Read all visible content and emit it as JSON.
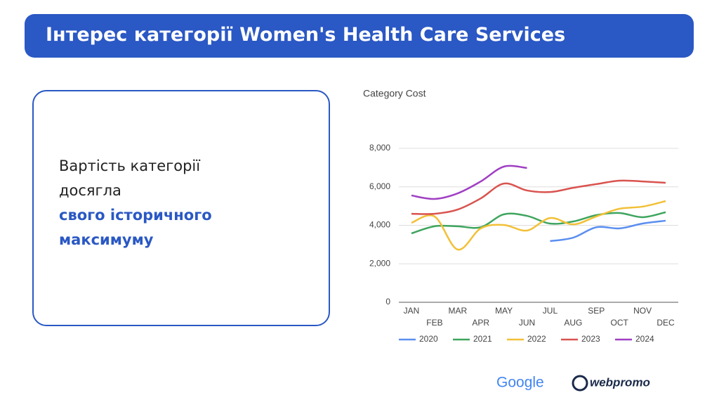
{
  "header": {
    "title": "Інтерес категорії Women's Health Care Services"
  },
  "card": {
    "lines": [
      "Вартість категорії",
      "досягла",
      "свого історичного",
      "максимуму"
    ]
  },
  "logos": {
    "google": "Google",
    "webpromo": "webpromo"
  },
  "chart_data": {
    "type": "line",
    "title": "Category Cost",
    "categories": [
      "JAN",
      "FEB",
      "MAR",
      "APR",
      "MAY",
      "JUN",
      "JUL",
      "AUG",
      "SEP",
      "OCT",
      "NOV",
      "DEC"
    ],
    "ylim": [
      0,
      8000
    ],
    "yticks": [
      0,
      {
        "value": 2000,
        "label": "2,000"
      },
      {
        "value": 4000,
        "label": "4,000"
      },
      {
        "value": 6000,
        "label": "6,000"
      },
      {
        "value": 8000,
        "label": "8,000"
      }
    ],
    "grid": true,
    "legend": "bottom",
    "series": [
      {
        "name": "2020",
        "color": "#5b8ff0",
        "values": [
          null,
          null,
          null,
          null,
          null,
          null,
          3180,
          3360,
          3900,
          3840,
          4090,
          4240
        ]
      },
      {
        "name": "2021",
        "color": "#3ea55e",
        "values": [
          3580,
          3950,
          3950,
          3900,
          4570,
          4490,
          4090,
          4200,
          4530,
          4640,
          4420,
          4680
        ]
      },
      {
        "name": "2022",
        "color": "#f2c037",
        "values": [
          4130,
          4460,
          2740,
          3840,
          4020,
          3730,
          4380,
          4050,
          4460,
          4860,
          4970,
          5260
        ]
      },
      {
        "name": "2023",
        "color": "#d9534f",
        "values": [
          4600,
          4600,
          4820,
          5400,
          6170,
          5810,
          5730,
          5950,
          6140,
          6320,
          6280,
          6210
        ]
      },
      {
        "name": "2024",
        "color": "#a03fc4",
        "values": [
          5550,
          5370,
          5660,
          6280,
          7050,
          6980,
          null,
          null,
          null,
          null,
          null,
          null
        ]
      }
    ]
  }
}
